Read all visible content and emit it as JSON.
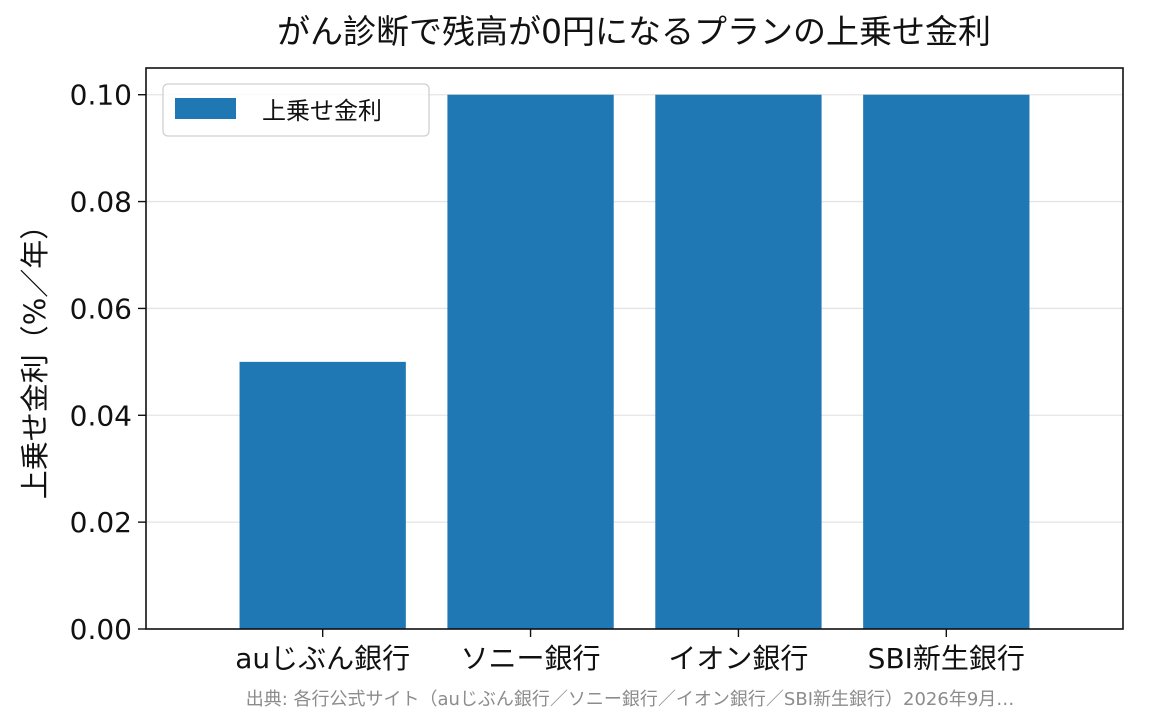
{
  "chart_data": {
    "type": "bar",
    "title": "がん診断で残高が0円になるプランの上乗せ金利",
    "xlabel": "",
    "ylabel": "上乗せ金利（%／年）",
    "categories": [
      "auじぶん銀行",
      "ソニー銀行",
      "イオン銀行",
      "SBI新生銀行"
    ],
    "series": [
      {
        "name": "上乗せ金利",
        "values": [
          0.05,
          0.1,
          0.1,
          0.1
        ],
        "color": "#1f77b4"
      }
    ],
    "ylim": [
      0,
      0.105
    ],
    "yticks": [
      0.0,
      0.02,
      0.04,
      0.06,
      0.08,
      0.1
    ],
    "ytick_labels": [
      "0.00",
      "0.02",
      "0.04",
      "0.06",
      "0.08",
      "0.10"
    ],
    "grid": "horizontal",
    "legend": "top-left"
  },
  "footnote": "出典: 各行公式サイト（auじぶん銀行／ソニー銀行／イオン銀行／SBI新生銀行）2026年9月…"
}
